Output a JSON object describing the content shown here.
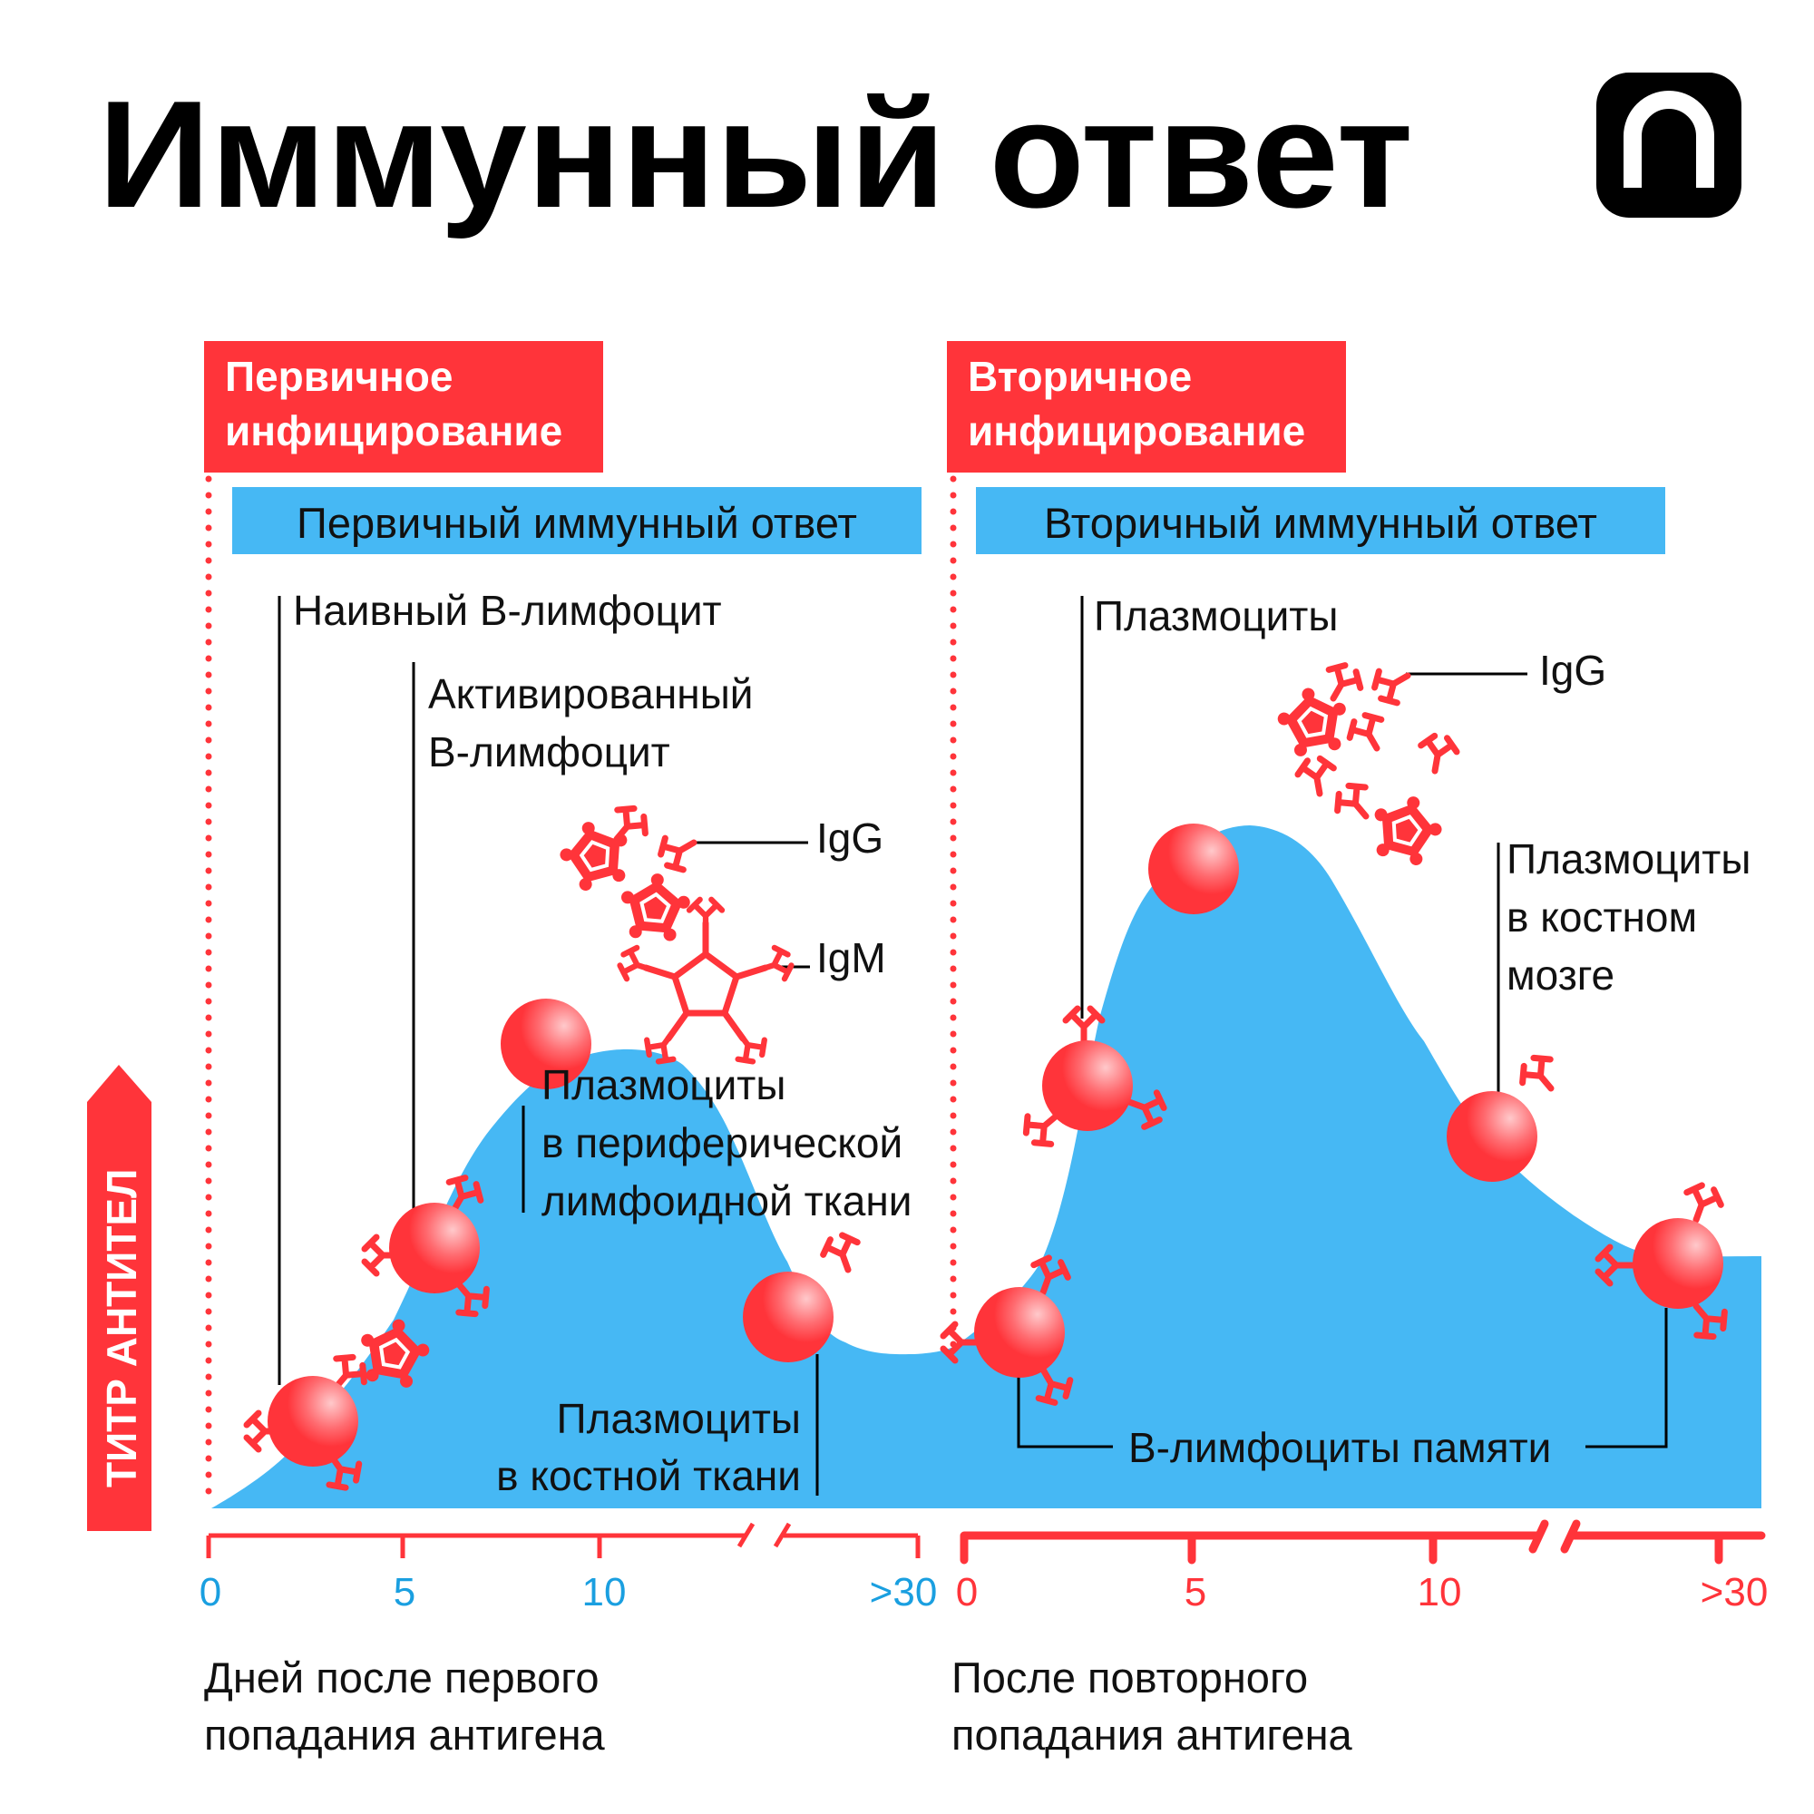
{
  "header": {
    "title": "Иммунный ответ",
    "logo": "n-arch-logo"
  },
  "colors": {
    "red": "#FF343A",
    "blue": "#46B8F4",
    "tick_blue": "#1A9FE0",
    "black": "#000000"
  },
  "primary": {
    "badge": [
      "Первичное",
      "инфицирование"
    ],
    "response": "Первичный иммунный ответ",
    "labels": {
      "naive": "Наивный В-лимфоцит",
      "activated": [
        "Активированный",
        "В-лимфоцит"
      ],
      "igg": "IgG",
      "igm": "IgM",
      "peripheral": [
        "Плазмоциты",
        "в периферической",
        "лимфоидной ткани"
      ],
      "bone": [
        "Плазмоциты",
        "в костной ткани"
      ]
    },
    "ticks": [
      "0",
      "5",
      "10",
      ">30"
    ],
    "xlabel": [
      "Дней после первого",
      "попадания антигена"
    ]
  },
  "secondary": {
    "badge": [
      "Вторичное",
      "инфицирование"
    ],
    "response": "Вторичный иммунный ответ",
    "labels": {
      "plasma": "Плазмоциты",
      "igg": "IgG",
      "marrow": [
        "Плазмоциты",
        "в костном",
        "мозге"
      ],
      "memory": "В-лимфоциты памяти"
    },
    "ticks": [
      "0",
      "5",
      "10",
      ">30"
    ],
    "xlabel": [
      "После повторного",
      "попадания антигена"
    ]
  },
  "yaxis": {
    "label": "ТИТР АНТИТЕЛ"
  }
}
